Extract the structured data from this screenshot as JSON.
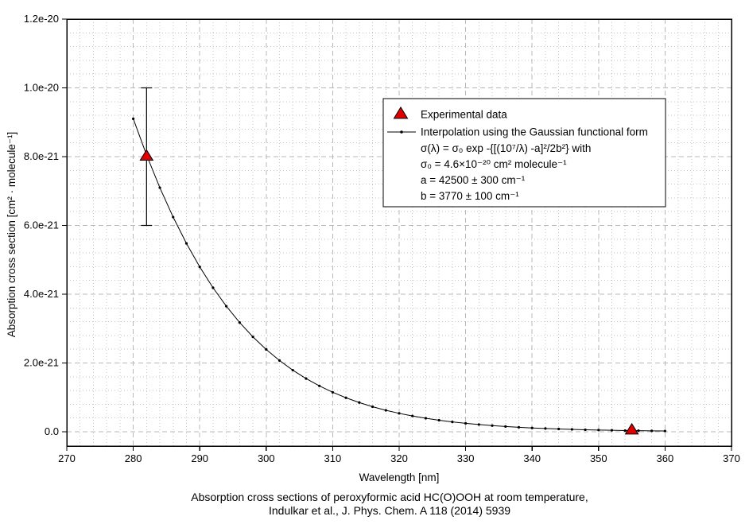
{
  "figure": {
    "caption_line1": "Absorption cross sections of peroxyformic acid HC(O)OOH at room temperature,",
    "caption_line2": "Indulkar et al., J. Phys. Chem. A 118 (2014) 5939"
  },
  "colors": {
    "background": "#ffffff",
    "frame": "#000000",
    "grid_major": "#b8b8b8",
    "grid_minor": "#c6c6c6",
    "curve": "#000000",
    "marker_fill": "#e00000",
    "marker_edge": "#000000",
    "text": "#000000"
  },
  "chart_data": {
    "type": "line",
    "title": "",
    "xlabel": "Wavelength [nm]",
    "ylabel": "Absorption cross section [cm² · molecule⁻¹]",
    "xlim": [
      270,
      370
    ],
    "ylim": [
      -4e-22,
      1.2e-20
    ],
    "x_ticks": [
      270,
      280,
      290,
      300,
      310,
      320,
      330,
      340,
      350,
      360,
      370
    ],
    "x_tick_labels": [
      "270",
      "280",
      "290",
      "300",
      "310",
      "320",
      "330",
      "340",
      "350",
      "360",
      "370"
    ],
    "x_minor_step": 2,
    "y_ticks_1e21": [
      0,
      2,
      4,
      6,
      8,
      10,
      12
    ],
    "y_tick_labels": [
      "0.0",
      "2.0e-21",
      "4.0e-21",
      "6.0e-21",
      "8.0e-21",
      "1.0e-20",
      "1.2e-20"
    ],
    "y_minor_step_1e21": 0.4,
    "sigma_unit": "cm² molecule⁻¹",
    "sigma_unit_scale": 1e-21,
    "grid": {
      "major": "dashed",
      "minor": "dotted"
    },
    "legend": {
      "position": "upper-right",
      "experimental_label": "Experimental data",
      "interpolation_label": "Interpolation using the Gaussian functional form",
      "formula_lines": [
        "σ(λ) = σ₀ exp -{[(10⁷/λ) -a]²/2b²} with",
        "σ₀ = 4.6×10⁻²⁰ cm² molecule⁻¹",
        "a = 42500 ± 300 cm⁻¹",
        "b = 3770 ± 100 cm⁻¹"
      ]
    },
    "series": [
      {
        "name": "Experimental data",
        "type": "scatter",
        "marker": "triangle-up",
        "points": [
          {
            "x_nm": 282,
            "sigma_1e21": 8.0,
            "err_1e21": 2.0
          },
          {
            "x_nm": 355,
            "sigma_1e21": 0.04,
            "err_1e21": 0
          }
        ]
      },
      {
        "name": "Interpolation using the Gaussian functional form",
        "type": "line-with-dots",
        "x_nm": [
          280,
          282,
          284,
          286,
          288,
          290,
          292,
          294,
          296,
          298,
          300,
          302,
          304,
          306,
          308,
          310,
          312,
          314,
          316,
          318,
          320,
          322,
          324,
          326,
          328,
          330,
          332,
          334,
          336,
          338,
          340,
          342,
          344,
          346,
          348,
          350,
          352,
          354,
          356,
          358,
          360
        ],
        "sigma_1e21": [
          9.102,
          8.048,
          7.097,
          6.242,
          5.477,
          4.794,
          4.188,
          3.651,
          3.177,
          2.76,
          2.393,
          2.072,
          1.791,
          1.547,
          1.334,
          1.148,
          0.988,
          0.849,
          0.729,
          0.625,
          0.536,
          0.459,
          0.393,
          0.336,
          0.287,
          0.245,
          0.21,
          0.179,
          0.153,
          0.13,
          0.111,
          0.095,
          0.081,
          0.069,
          0.059,
          0.05,
          0.043,
          0.036,
          0.031,
          0.026,
          0.022
        ]
      }
    ]
  }
}
